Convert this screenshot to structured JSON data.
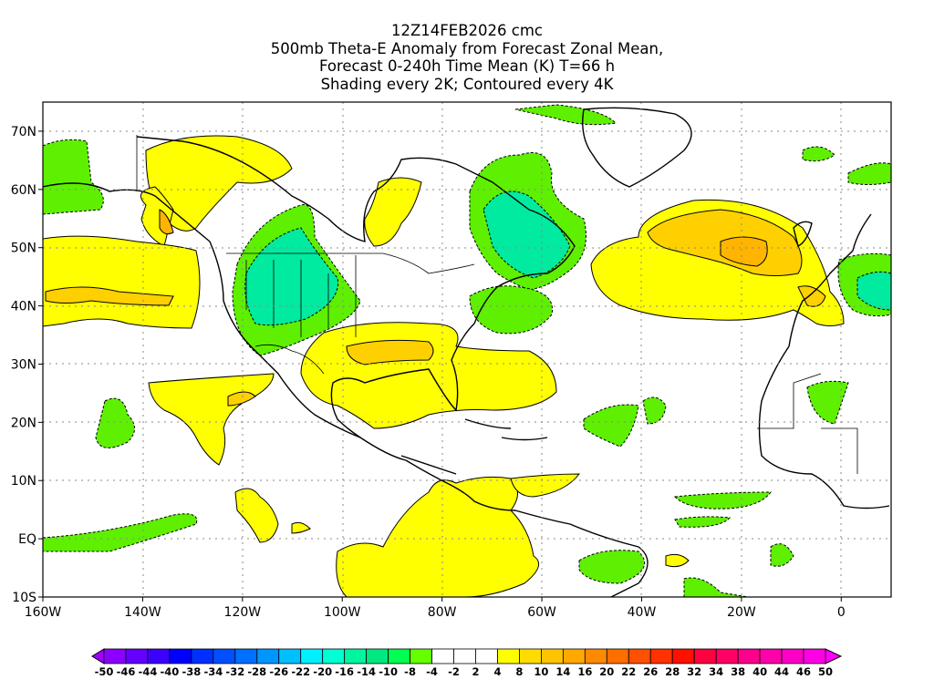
{
  "title": {
    "line1": "12Z14FEB2026 cmc",
    "line2": "500mb Theta-E Anomaly from Forecast Zonal Mean,",
    "line3": "Forecast 0-240h Time Mean (K) T=66 h",
    "line4": "Shading every 2K; Contoured every 4K"
  },
  "map": {
    "lon_range": [
      -160,
      10
    ],
    "lat_range": [
      -10,
      75
    ],
    "lat_labels": [
      {
        "lat": 70,
        "label": "70N"
      },
      {
        "lat": 60,
        "label": "60N"
      },
      {
        "lat": 50,
        "label": "50N"
      },
      {
        "lat": 40,
        "label": "40N"
      },
      {
        "lat": 30,
        "label": "30N"
      },
      {
        "lat": 20,
        "label": "20N"
      },
      {
        "lat": 10,
        "label": "10N"
      },
      {
        "lat": 0,
        "label": "EQ"
      },
      {
        "lat": -10,
        "label": "10S"
      }
    ],
    "lon_labels": [
      {
        "lon": -160,
        "label": "160W"
      },
      {
        "lon": -140,
        "label": "140W"
      },
      {
        "lon": -120,
        "label": "120W"
      },
      {
        "lon": -100,
        "label": "100W"
      },
      {
        "lon": -80,
        "label": "80W"
      },
      {
        "lon": -60,
        "label": "60W"
      },
      {
        "lon": -40,
        "label": "40W"
      },
      {
        "lon": -20,
        "label": "20W"
      },
      {
        "lon": 0,
        "label": "0"
      }
    ]
  },
  "colorbar": {
    "labels": [
      "-50",
      "-46",
      "-44",
      "-40",
      "-38",
      "-34",
      "-32",
      "-28",
      "-26",
      "-22",
      "-20",
      "-16",
      "-14",
      "-10",
      "-8",
      "-4",
      "-2",
      "2",
      "4",
      "8",
      "10",
      "14",
      "16",
      "20",
      "22",
      "26",
      "28",
      "32",
      "34",
      "38",
      "40",
      "44",
      "46",
      "50"
    ],
    "colors": [
      "#8c00ff",
      "#6400ff",
      "#3c00ff",
      "#0000ff",
      "#0030ff",
      "#0050ff",
      "#0070ff",
      "#0096ff",
      "#00c0ff",
      "#00f0ff",
      "#00ffd2",
      "#00f5a0",
      "#00e880",
      "#00ff50",
      "#66ff00",
      "#ffffff",
      "#ffffff",
      "#ffffff",
      "#ffff00",
      "#ffdc00",
      "#ffc400",
      "#ffa800",
      "#ff8a00",
      "#ff6e00",
      "#ff5000",
      "#ff3200",
      "#ff1000",
      "#ff0040",
      "#ff0064",
      "#ff008c",
      "#ff00aa",
      "#ff00c8",
      "#ff00e6"
    ],
    "low_arrow_color": "#a000ff",
    "high_arrow_color": "#ff00ff"
  },
  "palette": {
    "green": "#5ef000",
    "teal": "#00eaa0",
    "yellow": "#ffff00",
    "gold": "#ffd000",
    "orange": "#ffb400"
  }
}
